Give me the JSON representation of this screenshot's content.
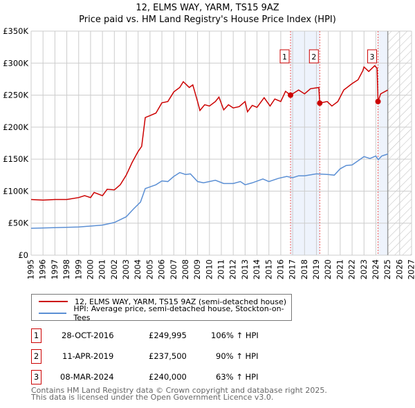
{
  "chart_data": {
    "type": "line",
    "title": "12, ELMS WAY, YARM, TS15 9AZ",
    "subtitle": "Price paid vs. HM Land Registry's House Price Index (HPI)",
    "xlim": [
      1995,
      2027
    ],
    "ylim": [
      0,
      350000
    ],
    "x_ticks": [
      "1995",
      "1996",
      "1997",
      "1998",
      "1999",
      "2000",
      "2001",
      "2002",
      "2003",
      "2004",
      "2005",
      "2006",
      "2007",
      "2008",
      "2009",
      "2010",
      "2011",
      "2012",
      "2013",
      "2014",
      "2015",
      "2016",
      "2017",
      "2018",
      "2019",
      "2020",
      "2021",
      "2022",
      "2023",
      "2024",
      "2025",
      "2026",
      "2027"
    ],
    "y_ticks": [
      {
        "v": 0,
        "l": "£0"
      },
      {
        "v": 50000,
        "l": "£50K"
      },
      {
        "v": 100000,
        "l": "£100K"
      },
      {
        "v": 150000,
        "l": "£150K"
      },
      {
        "v": 200000,
        "l": "£200K"
      },
      {
        "v": 250000,
        "l": "£250K"
      },
      {
        "v": 300000,
        "l": "£300K"
      },
      {
        "v": 350000,
        "l": "£350K"
      }
    ],
    "grid": true,
    "series": [
      {
        "name": "12, ELMS WAY, YARM, TS15 9AZ (semi-detached house)",
        "color": "#cc0000",
        "x": [
          1995,
          1996,
          1997,
          1998,
          1999,
          1999.5,
          2000,
          2000.3,
          2001,
          2001.4,
          2002,
          2002.5,
          2003,
          2003.5,
          2004,
          2004.3,
          2004.6,
          2005,
          2005.5,
          2006,
          2006.5,
          2007,
          2007.5,
          2007.8,
          2008.3,
          2008.6,
          2009,
          2009.2,
          2009.6,
          2010,
          2010.5,
          2010.8,
          2011.2,
          2011.6,
          2012,
          2012.5,
          2013,
          2013.2,
          2013.6,
          2014,
          2014.6,
          2015.1,
          2015.5,
          2016,
          2016.4,
          2016.82,
          2017.5,
          2018,
          2018.5,
          2019.2,
          2019.28,
          2019.9,
          2020.3,
          2020.8,
          2021.3,
          2022,
          2022.5,
          2022.9,
          2023,
          2023.4,
          2023.9,
          2024.1,
          2024.18,
          2024.4,
          2025
        ],
        "y": [
          87000,
          86000,
          87000,
          87000,
          90000,
          93000,
          90000,
          98000,
          93000,
          103000,
          102000,
          110000,
          125000,
          145000,
          162000,
          170000,
          215000,
          218000,
          222000,
          238000,
          240000,
          255000,
          262000,
          271000,
          262000,
          266000,
          240000,
          226000,
          235000,
          233000,
          240000,
          247000,
          227000,
          235000,
          230000,
          232000,
          240000,
          224000,
          234000,
          231000,
          246000,
          233000,
          244000,
          240000,
          256000,
          249995,
          258000,
          252000,
          260000,
          262000,
          237500,
          240000,
          233000,
          240000,
          258000,
          268000,
          274000,
          288000,
          294000,
          287000,
          296000,
          292000,
          240000,
          252000,
          258000
        ]
      },
      {
        "name": "HPI: Average price, semi-detached house, Stockton-on-Tees",
        "color": "#5b8fd4",
        "x": [
          1995,
          1999,
          2001,
          2002,
          2003,
          2003.6,
          2004.2,
          2004.6,
          2005.5,
          2006,
          2006.5,
          2007,
          2007.5,
          2008,
          2008.4,
          2009,
          2009.5,
          2010.5,
          2011.2,
          2012,
          2012.6,
          2013,
          2013.6,
          2014.5,
          2015,
          2015.8,
          2016.5,
          2017,
          2017.5,
          2018,
          2019,
          2020,
          2020.5,
          2021,
          2021.5,
          2022,
          2022.7,
          2023,
          2023.5,
          2024,
          2024.2,
          2024.5,
          2025
        ],
        "y": [
          42000,
          44000,
          47000,
          51000,
          60000,
          72000,
          83000,
          104000,
          110000,
          116000,
          115000,
          123000,
          129000,
          126000,
          127000,
          115000,
          113000,
          117000,
          112000,
          112000,
          115000,
          110000,
          113000,
          119000,
          115000,
          120000,
          123000,
          121000,
          124000,
          124000,
          127000,
          126000,
          125000,
          135000,
          140000,
          141000,
          150000,
          154000,
          151000,
          155000,
          149000,
          155000,
          158000
        ]
      }
    ],
    "sales": [
      {
        "label": "1",
        "x": 2016.82,
        "y": 249995,
        "date": "28-OCT-2016",
        "price": "£249,995",
        "hpi": "106% ↑ HPI"
      },
      {
        "label": "2",
        "x": 2019.28,
        "y": 237500,
        "date": "11-APR-2019",
        "price": "£237,500",
        "hpi": "90% ↑ HPI"
      },
      {
        "label": "3",
        "x": 2024.18,
        "y": 240000,
        "date": "08-MAR-2024",
        "price": "£240,000",
        "hpi": "63% ↑ HPI"
      }
    ],
    "shaded": [
      [
        2016.82,
        2019.28
      ],
      [
        2024.18,
        2025.0
      ]
    ],
    "forecast_from": 2025.0
  },
  "footer": {
    "line1": "Contains HM Land Registry data © Crown copyright and database right 2025.",
    "line2": "This data is licensed under the Open Government Licence v3.0."
  }
}
